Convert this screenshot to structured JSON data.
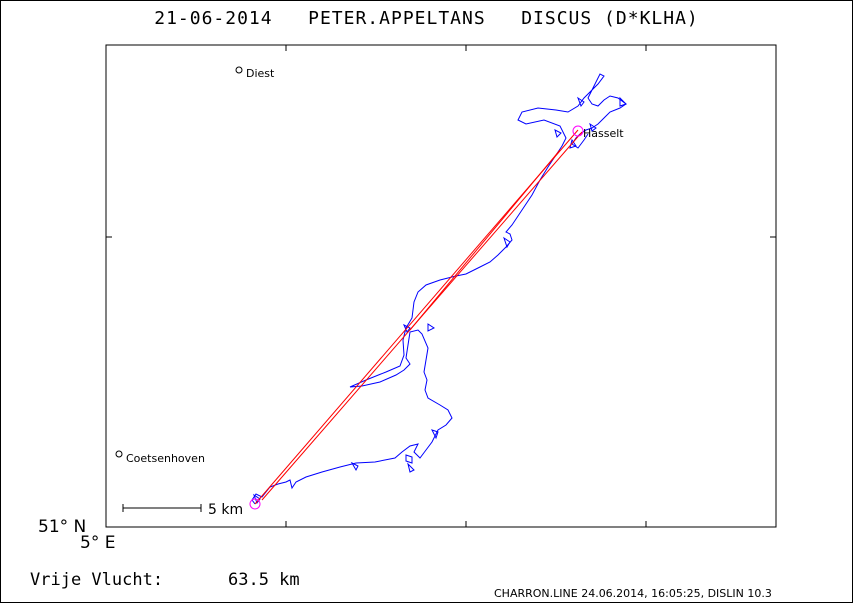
{
  "header": {
    "date": "21-06-2014",
    "pilot": "PETER.APPELTANS",
    "glider": "DISCUS (D*KLHA)"
  },
  "axes": {
    "lat_label": "51° N",
    "lon_label": "5° E"
  },
  "places": [
    {
      "name": "Diest"
    },
    {
      "name": "Hasselt"
    },
    {
      "name": "Coetsenhoven"
    }
  ],
  "scale": {
    "label": "5 km"
  },
  "flight": {
    "label": "Vrije Vlucht:",
    "distance": "63.5 km"
  },
  "footer": {
    "text": "CHARRON.LINE 24.06.2014, 16:05:25, DISLIN 10.3"
  },
  "colors": {
    "track": "#0000ff",
    "task_line": "#ff0000",
    "turnpoint": "#ff00ff",
    "frame": "#000000"
  }
}
